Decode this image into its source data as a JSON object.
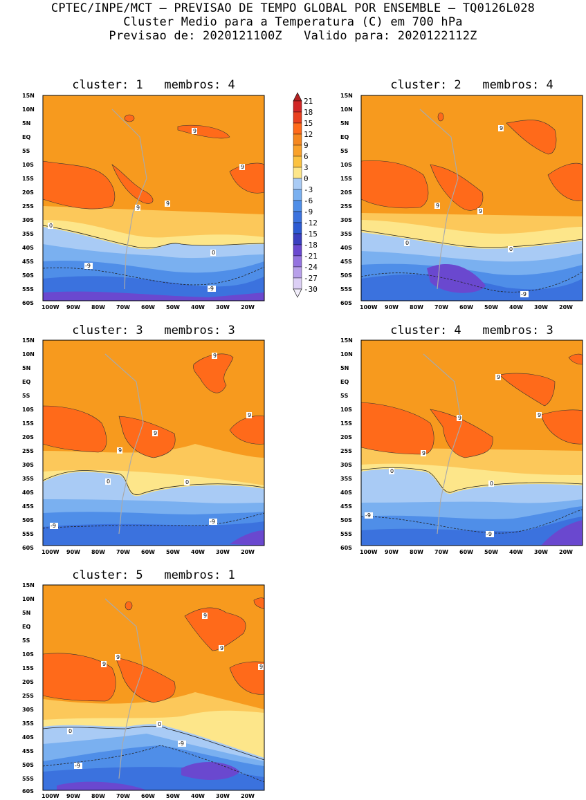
{
  "header": {
    "line1": "CPTEC/INPE/MCT — PREVISAO DE TEMPO GLOBAL POR ENSEMBLE — TQ0126L028",
    "line2": "Cluster Medio para a Temperatura (C) em 700 hPa",
    "line3": "Previsao de: 2020121100Z   Valido para: 2020122112Z"
  },
  "axes": {
    "lat_labels": [
      "15N",
      "10N",
      "5N",
      "EQ",
      "5S",
      "10S",
      "15S",
      "20S",
      "25S",
      "30S",
      "35S",
      "40S",
      "45S",
      "50S",
      "55S",
      "60S"
    ],
    "lon_labels": [
      "100W",
      "90W",
      "80W",
      "70W",
      "60W",
      "50W",
      "40W",
      "30W",
      "20W"
    ]
  },
  "colorbar": {
    "labels": [
      "21",
      "18",
      "15",
      "12",
      "9",
      "6",
      "3",
      "0",
      "-3",
      "-6",
      "-9",
      "-12",
      "-15",
      "-18",
      "-21",
      "-24",
      "-27",
      "-30"
    ],
    "colors": [
      "#b22222",
      "#d02626",
      "#e8401f",
      "#ff6a1a",
      "#f5871f",
      "#f9a12a",
      "#fbc241",
      "#fde68a",
      "#a9cbf5",
      "#7ab0f0",
      "#4f8ee8",
      "#3b72de",
      "#2c5ad2",
      "#3a3fbf",
      "#6a48cf",
      "#9473df",
      "#b8a0ea",
      "#dccff5",
      "#f2eefb"
    ]
  },
  "panels": [
    {
      "title": "cluster: 1   membros: 4",
      "contour_labels": [
        "9",
        "9",
        "9",
        "9",
        "0",
        "0",
        "-9",
        "-9"
      ]
    },
    {
      "title": "cluster: 2   membros: 4",
      "contour_labels": [
        "9",
        "9",
        "9",
        "0",
        "0",
        "-9"
      ]
    },
    {
      "title": "cluster: 3   membros: 3",
      "contour_labels": [
        "9",
        "9",
        "9",
        "9",
        "0",
        "0",
        "-9",
        "-9"
      ]
    },
    {
      "title": "cluster: 4   membros: 3",
      "contour_labels": [
        "9",
        "9",
        "9",
        "9",
        "0",
        "0",
        "-9",
        "-9"
      ]
    },
    {
      "title": "cluster: 5   membros: 1",
      "contour_labels": [
        "9",
        "9",
        "9",
        "9",
        "9",
        "0",
        "0",
        "-9",
        "-9"
      ]
    }
  ]
}
